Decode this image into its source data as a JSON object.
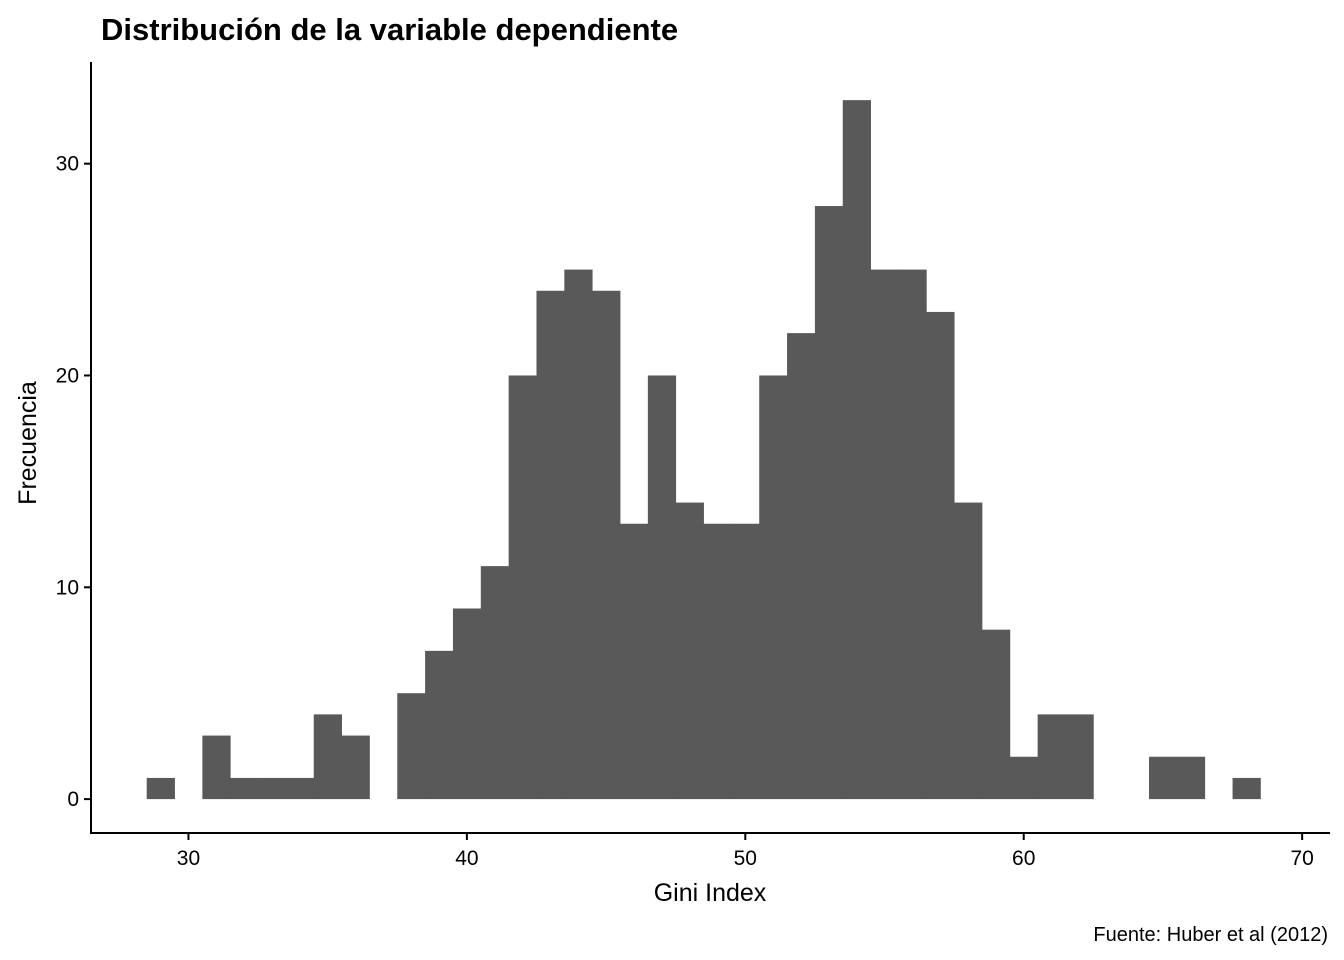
{
  "chart_data": {
    "type": "bar",
    "subtype": "histogram",
    "title": "Distribución de la variable dependiente",
    "xlabel": "Gini Index",
    "ylabel": "Frecuencia",
    "caption": "Fuente: Huber et al (2012)",
    "bar_color": "#595959",
    "background": "#ffffff",
    "grid": false,
    "legend": "none",
    "xlim": [
      26.5,
      71
    ],
    "ylim": [
      -1.6,
      34.8
    ],
    "x_ticks": [
      30,
      40,
      50,
      60,
      70
    ],
    "y_ticks": [
      0,
      10,
      20,
      30
    ],
    "bins": [
      {
        "x0": 28.5,
        "x1": 29.5,
        "count": 1
      },
      {
        "x0": 29.5,
        "x1": 30.5,
        "count": 0
      },
      {
        "x0": 30.5,
        "x1": 31.5,
        "count": 3
      },
      {
        "x0": 31.5,
        "x1": 32.5,
        "count": 1
      },
      {
        "x0": 32.5,
        "x1": 33.5,
        "count": 1
      },
      {
        "x0": 33.5,
        "x1": 34.5,
        "count": 1
      },
      {
        "x0": 34.5,
        "x1": 35.5,
        "count": 4
      },
      {
        "x0": 35.5,
        "x1": 36.5,
        "count": 3
      },
      {
        "x0": 36.5,
        "x1": 37.5,
        "count": 0
      },
      {
        "x0": 37.5,
        "x1": 38.5,
        "count": 5
      },
      {
        "x0": 38.5,
        "x1": 39.5,
        "count": 7
      },
      {
        "x0": 39.5,
        "x1": 40.5,
        "count": 9
      },
      {
        "x0": 40.5,
        "x1": 41.5,
        "count": 11
      },
      {
        "x0": 41.5,
        "x1": 42.5,
        "count": 20
      },
      {
        "x0": 42.5,
        "x1": 43.5,
        "count": 24
      },
      {
        "x0": 43.5,
        "x1": 44.5,
        "count": 25
      },
      {
        "x0": 44.5,
        "x1": 45.5,
        "count": 24
      },
      {
        "x0": 45.5,
        "x1": 46.5,
        "count": 13
      },
      {
        "x0": 46.5,
        "x1": 47.5,
        "count": 20
      },
      {
        "x0": 47.5,
        "x1": 48.5,
        "count": 14
      },
      {
        "x0": 48.5,
        "x1": 49.5,
        "count": 13
      },
      {
        "x0": 49.5,
        "x1": 50.5,
        "count": 13
      },
      {
        "x0": 50.5,
        "x1": 51.5,
        "count": 20
      },
      {
        "x0": 51.5,
        "x1": 52.5,
        "count": 22
      },
      {
        "x0": 52.5,
        "x1": 53.5,
        "count": 28
      },
      {
        "x0": 53.5,
        "x1": 54.5,
        "count": 33
      },
      {
        "x0": 54.5,
        "x1": 55.5,
        "count": 25
      },
      {
        "x0": 55.5,
        "x1": 56.5,
        "count": 25
      },
      {
        "x0": 56.5,
        "x1": 57.5,
        "count": 23
      },
      {
        "x0": 57.5,
        "x1": 58.5,
        "count": 14
      },
      {
        "x0": 58.5,
        "x1": 59.5,
        "count": 8
      },
      {
        "x0": 59.5,
        "x1": 60.5,
        "count": 2
      },
      {
        "x0": 60.5,
        "x1": 61.5,
        "count": 4
      },
      {
        "x0": 61.5,
        "x1": 62.5,
        "count": 4
      },
      {
        "x0": 62.5,
        "x1": 63.5,
        "count": 0
      },
      {
        "x0": 63.5,
        "x1": 64.5,
        "count": 0
      },
      {
        "x0": 64.5,
        "x1": 65.5,
        "count": 2
      },
      {
        "x0": 65.5,
        "x1": 66.5,
        "count": 2
      },
      {
        "x0": 66.5,
        "x1": 67.5,
        "count": 0
      },
      {
        "x0": 67.5,
        "x1": 68.5,
        "count": 1
      }
    ]
  }
}
